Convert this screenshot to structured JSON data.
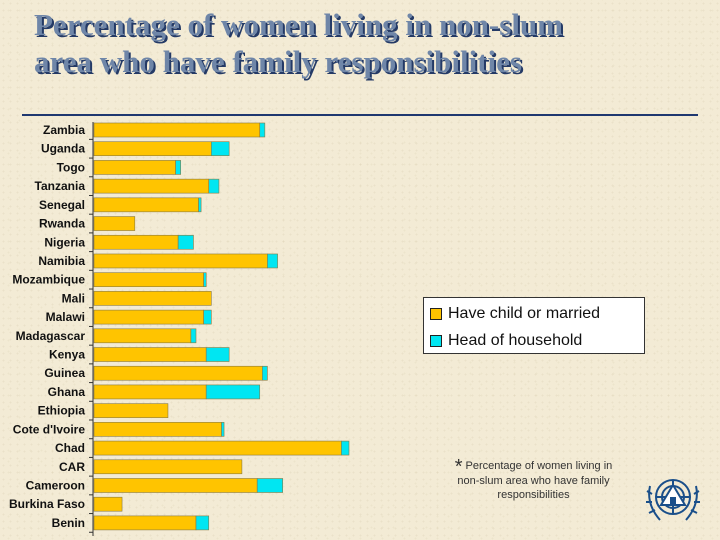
{
  "title": {
    "line1": "Percentage of women living in non-slum",
    "line2": "area who have family responsibilities"
  },
  "colors": {
    "married": "#ffc400",
    "head": "#00e6f2",
    "title": "#6f86a8",
    "rule": "#1f3870"
  },
  "legend": {
    "married_label": "Have child or married",
    "head_label": "Head of household"
  },
  "note": {
    "star": "*",
    "text": "Percentage of women living in non-slum area who have family responsibilities"
  },
  "logo": {
    "icon": "un-habitat-emblem"
  },
  "chart_data": {
    "type": "bar",
    "orientation": "horizontal",
    "stacked": true,
    "categories": [
      "Zambia",
      "Uganda",
      "Togo",
      "Tanzania",
      "Senegal",
      "Rwanda",
      "Nigeria",
      "Namibia",
      "Mozambique",
      "Mali",
      "Malawi",
      "Madagascar",
      "Kenya",
      "Guinea",
      "Ghana",
      "Ethiopia",
      "Cote d'Ivoire",
      "Chad",
      "CAR",
      "Cameroon",
      "Burkina Faso",
      "Benin"
    ],
    "series": [
      {
        "name": "Have child or married",
        "values": [
          65,
          46,
          32,
          45,
          41,
          16,
          33,
          68,
          43,
          46,
          43,
          38,
          44,
          66,
          44,
          29,
          50,
          97,
          58,
          64,
          11,
          40
        ]
      },
      {
        "name": "Head of household",
        "values": [
          2,
          7,
          2,
          4,
          1,
          0,
          6,
          4,
          1,
          0,
          3,
          2,
          9,
          2,
          21,
          0,
          1,
          3,
          0,
          10,
          0,
          5
        ]
      }
    ],
    "xlim": [
      0,
      100
    ],
    "grid": false,
    "legend_position": "right"
  }
}
